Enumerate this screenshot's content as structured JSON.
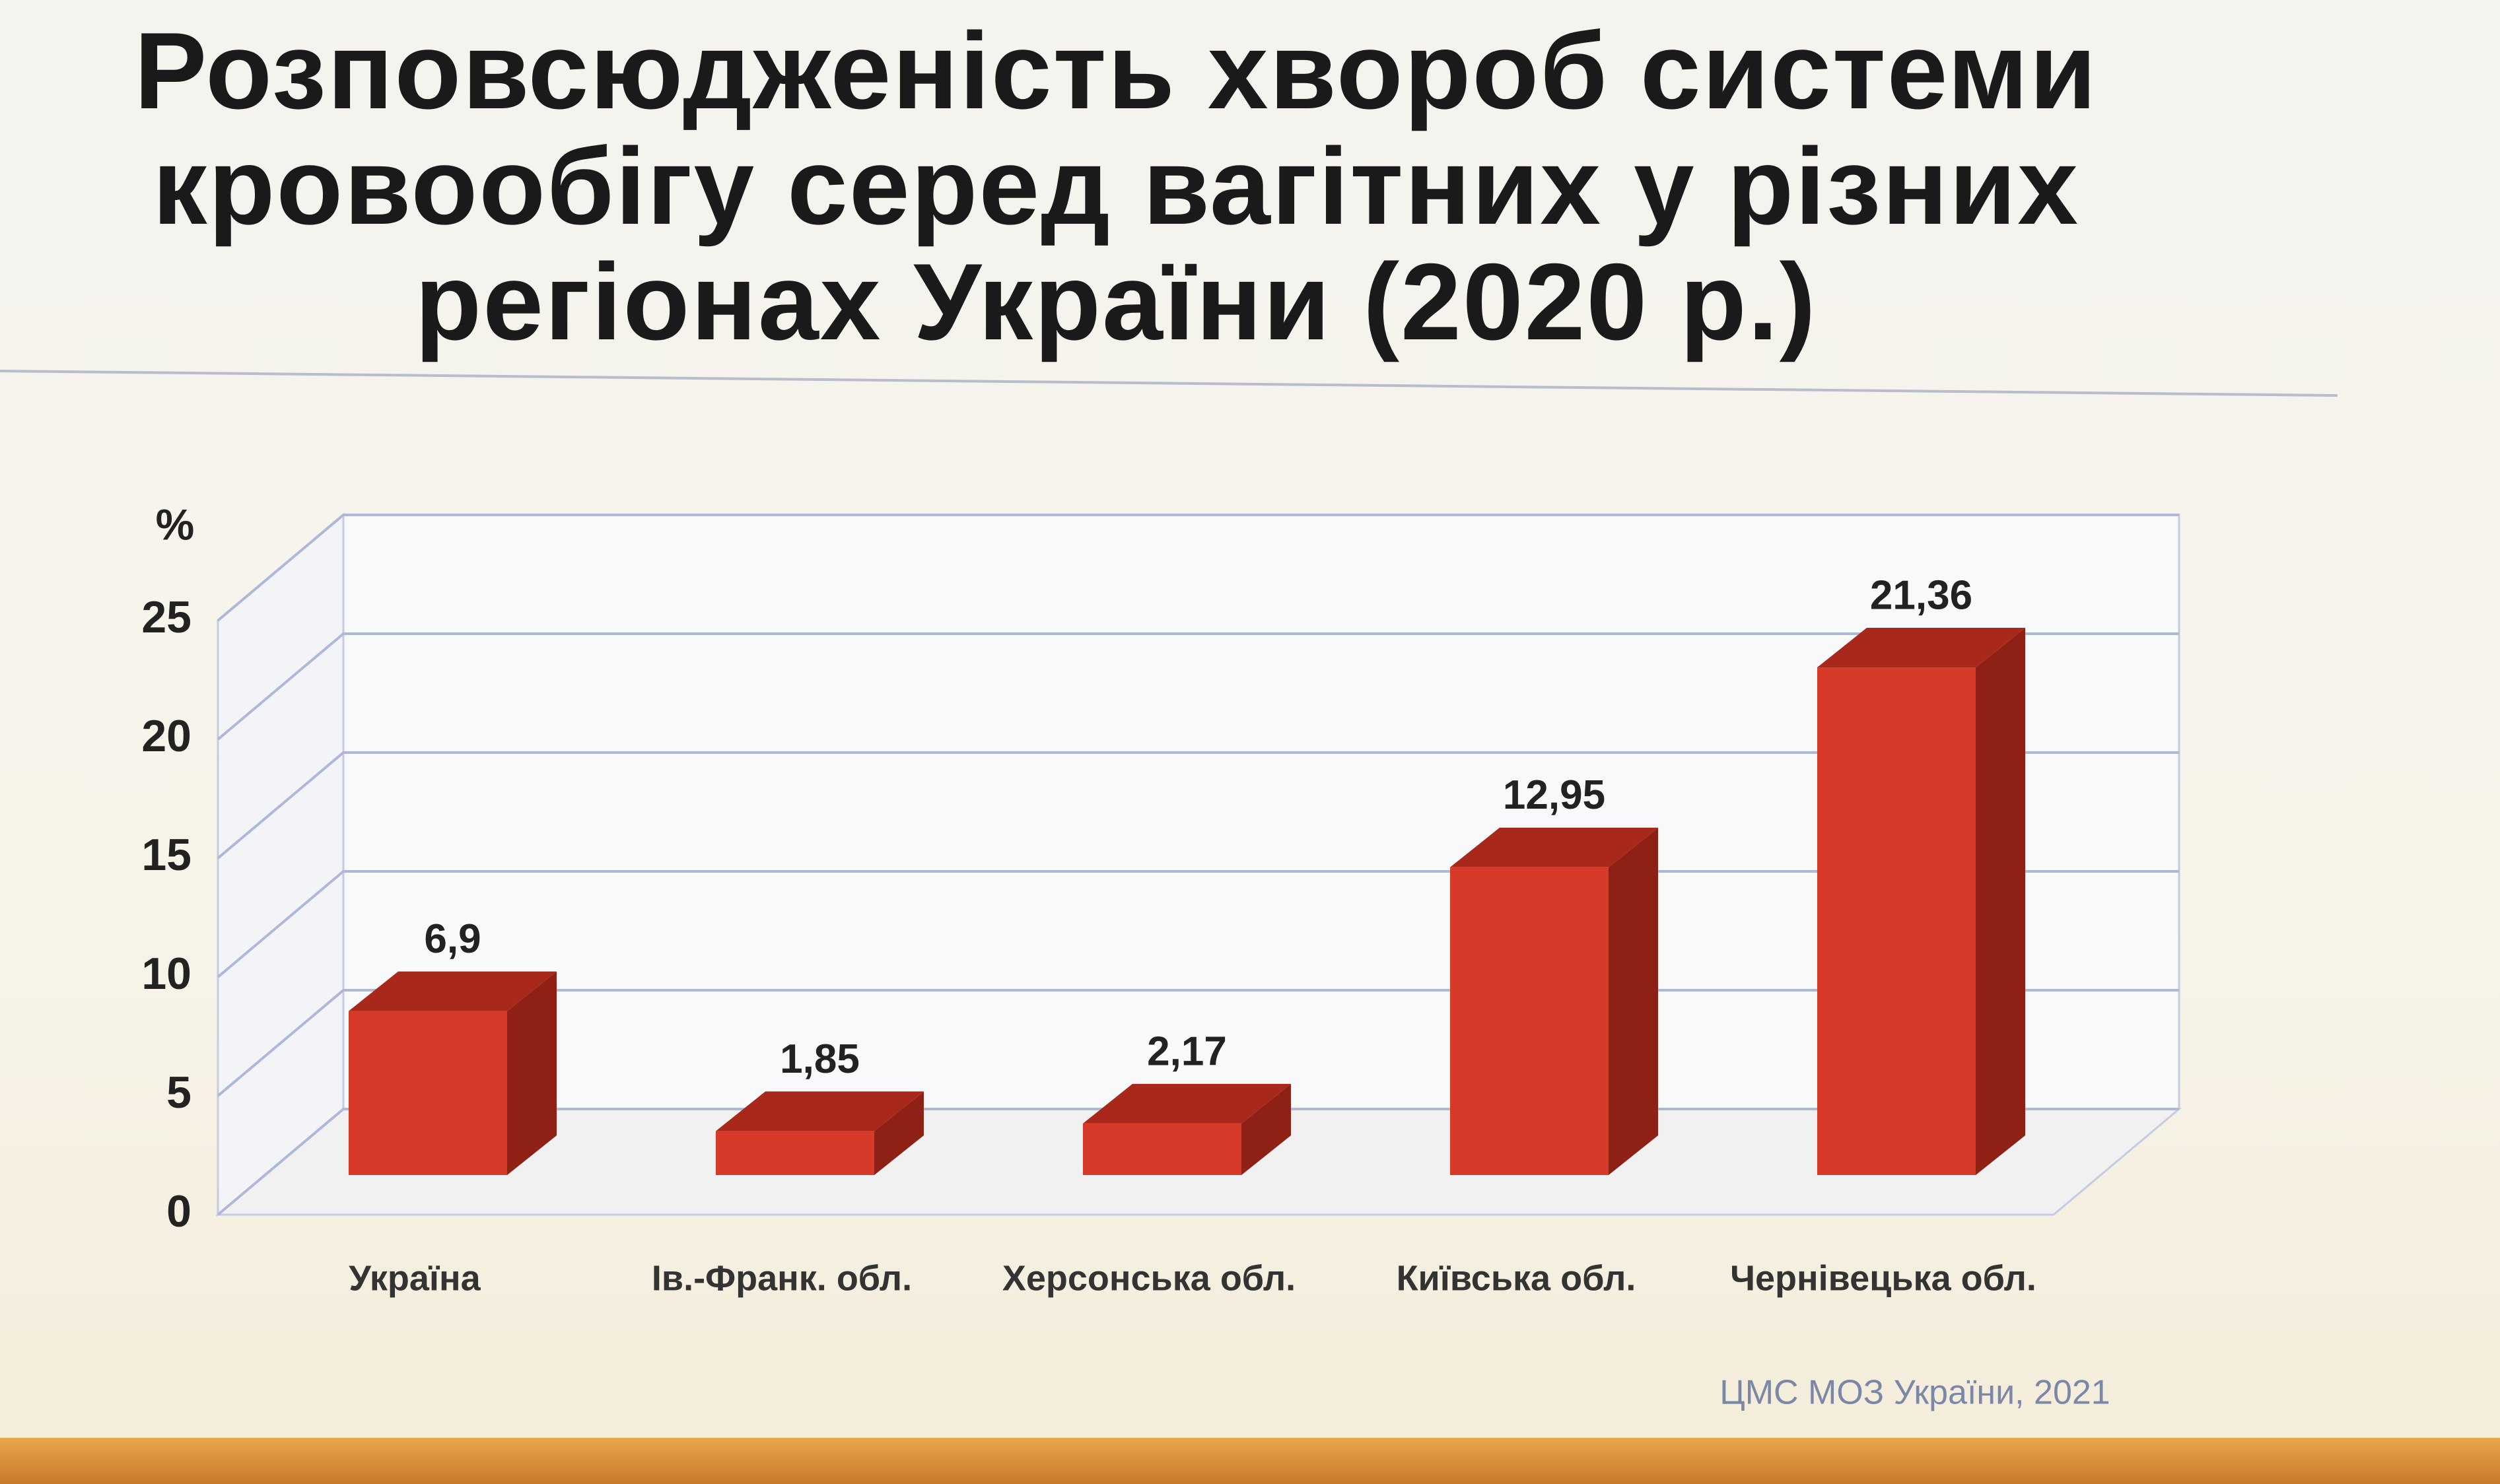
{
  "chart_data": {
    "type": "bar3d",
    "title": "Розповсюдженість хвороб системи кровообігу серед вагітних у різних регіонах України  (2020 р.)",
    "y_label": "%",
    "categories": [
      "Україна",
      "Ів.-Франк. обл.",
      "Херсонська обл.",
      "Київська обл.",
      "Чернівецька обл."
    ],
    "values": [
      6.9,
      1.85,
      2.17,
      12.95,
      21.36
    ],
    "value_labels": [
      "6,9",
      "1,85",
      "2,17",
      "12,95",
      "21,36"
    ],
    "color": "#d63a28",
    "ylim": [
      0,
      25
    ],
    "yticks": [
      0,
      5,
      10,
      15,
      20,
      25
    ],
    "grid": true,
    "source": "ЦМС МОЗ України, 2021"
  }
}
